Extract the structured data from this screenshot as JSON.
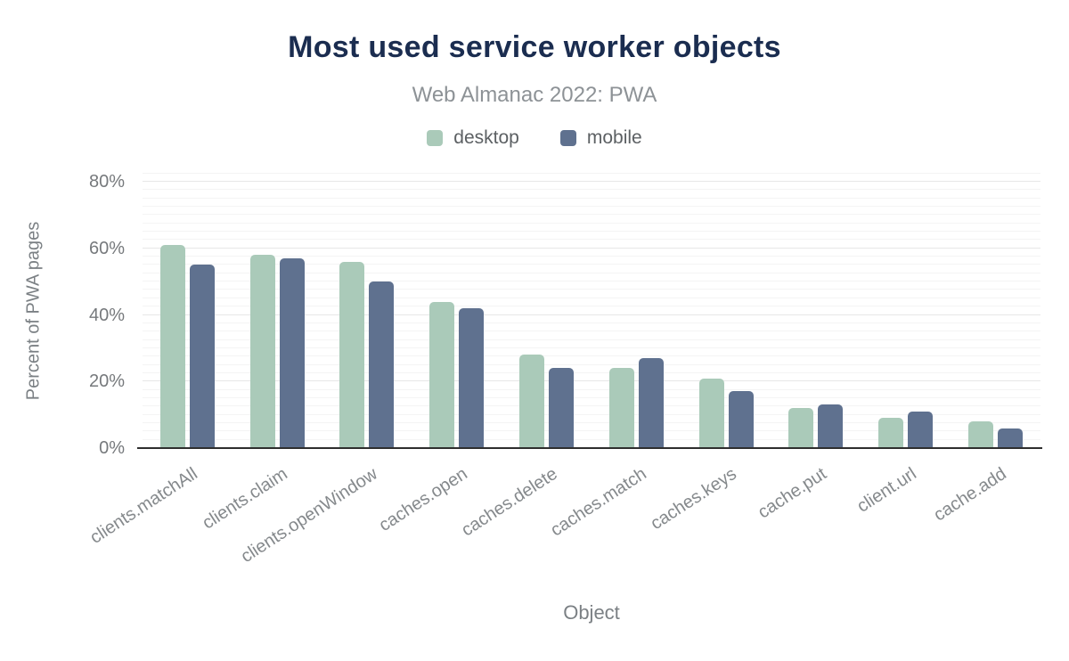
{
  "header": {
    "title": "Most used service worker objects",
    "subtitle": "Web Almanac 2022: PWA"
  },
  "legend": [
    {
      "label": "desktop",
      "color": "#aacab9"
    },
    {
      "label": "mobile",
      "color": "#5f718f"
    }
  ],
  "chart_data": {
    "type": "bar",
    "title": "Most used service worker objects",
    "subtitle": "Web Almanac 2022: PWA",
    "xlabel": "Object",
    "ylabel": "Percent of PWA pages",
    "ylim": [
      0,
      80
    ],
    "unit": "%",
    "y_ticks": [
      "0%",
      "20%",
      "40%",
      "60%",
      "80%"
    ],
    "y_tick_values": [
      0,
      20,
      40,
      60,
      80
    ],
    "grid": "horizontal; major every 20%, faint minor every 2.5%",
    "legend_position": "top",
    "categories": [
      "clients.matchAll",
      "clients.claim",
      "clients.openWindow",
      "caches.open",
      "caches.delete",
      "caches.match",
      "caches.keys",
      "cache.put",
      "client.url",
      "cache.add"
    ],
    "series": [
      {
        "name": "desktop",
        "color": "#aacab9",
        "values": [
          61,
          58,
          56,
          44,
          28,
          24,
          21,
          12,
          9,
          8
        ]
      },
      {
        "name": "mobile",
        "color": "#5f718f",
        "values": [
          55,
          57,
          50,
          42,
          24,
          27,
          17,
          13,
          11,
          6
        ]
      }
    ]
  },
  "colors": {
    "title": "#1b2d50",
    "subtitle": "#8d9296",
    "legend_text": "#5c6063",
    "tick_label_y": "#76797c",
    "tick_label_x": "#85898c",
    "axis_title": "#7b8084",
    "axis_line": "#2e2e2e",
    "gridline_major": "#e7e7e7",
    "gridline_minor": "#f4f4f4",
    "background": "#ffffff"
  }
}
